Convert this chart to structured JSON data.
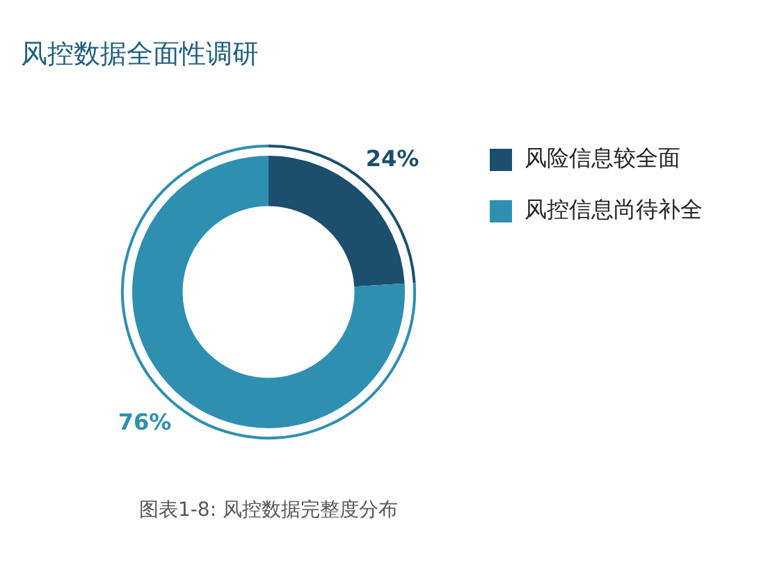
{
  "chart_data": {
    "type": "donut",
    "title": "风控数据全面性调研",
    "categories": [
      "风险信息较全面",
      "风控信息尚待补全"
    ],
    "values": [
      24,
      76
    ],
    "colors": [
      "#1b4f6d",
      "#2f8fb1"
    ],
    "value_labels": [
      "24%",
      "76%"
    ],
    "legend": "right",
    "annotations": [
      "图表1-8: 风控数据完整度分布"
    ]
  }
}
